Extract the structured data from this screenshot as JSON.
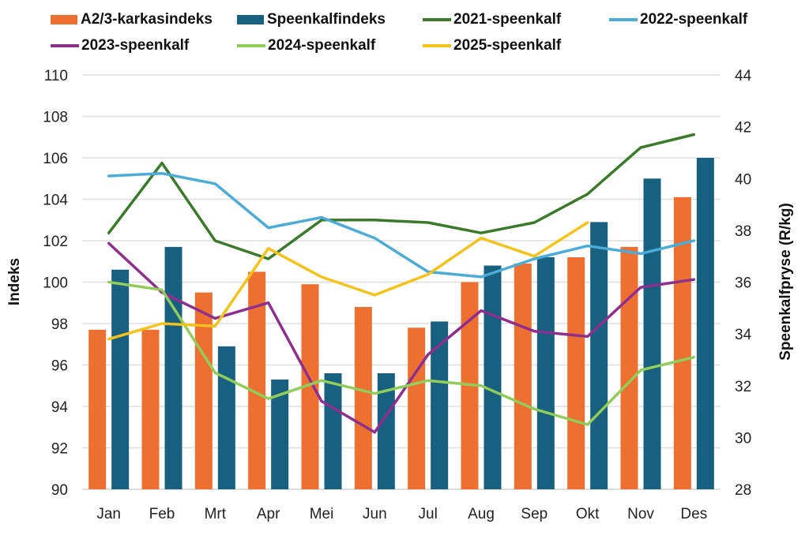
{
  "chart_data": {
    "type": "bar",
    "title": "",
    "xlabel": "",
    "ylabel": "Indeks",
    "y2label": "Speenkalfpryse (R/kg)",
    "ylim": [
      90,
      110
    ],
    "y2lim": [
      28,
      44
    ],
    "yticks": [
      "90",
      "92",
      "94",
      "96",
      "98",
      "100",
      "102",
      "104",
      "106",
      "108",
      "110"
    ],
    "y2ticks": [
      "28",
      "30",
      "32",
      "34",
      "36",
      "38",
      "40",
      "42",
      "44"
    ],
    "grid": true,
    "legend_position": "top",
    "categories": [
      "Jan",
      "Feb",
      "Mrt",
      "Apr",
      "Mei",
      "Jun",
      "Jul",
      "Aug",
      "Sep",
      "Okt",
      "Nov",
      "Des"
    ],
    "bar_series": [
      {
        "name": "A2/3-karkasindeks",
        "color": "#ED7031",
        "axis": "left",
        "values": [
          97.7,
          97.7,
          99.5,
          100.5,
          99.9,
          98.8,
          97.8,
          100.0,
          100.9,
          101.2,
          101.7,
          104.1
        ]
      },
      {
        "name": "Speenkalfindeks",
        "color": "#17607F",
        "axis": "left",
        "values": [
          100.6,
          101.7,
          96.9,
          95.3,
          95.6,
          95.6,
          98.1,
          100.8,
          101.2,
          102.9,
          105.0,
          106.0
        ]
      }
    ],
    "line_series": [
      {
        "name": "2021-speenkalf",
        "color": "#3A7A2A",
        "axis": "right",
        "values": [
          37.9,
          40.6,
          37.6,
          36.9,
          38.4,
          38.4,
          38.3,
          37.9,
          38.3,
          39.4,
          41.2,
          41.7
        ]
      },
      {
        "name": "2022-speenkalf",
        "color": "#4BACD8",
        "axis": "right",
        "values": [
          40.1,
          40.2,
          39.8,
          38.1,
          38.5,
          37.7,
          36.4,
          36.2,
          36.9,
          37.4,
          37.1,
          37.6
        ]
      },
      {
        "name": "2023-speenkalf",
        "color": "#8E2F8E",
        "axis": "right",
        "values": [
          37.5,
          35.6,
          34.6,
          35.2,
          31.4,
          30.2,
          33.2,
          34.9,
          34.1,
          33.9,
          35.8,
          36.1
        ]
      },
      {
        "name": "2024-speenkalf",
        "color": "#92CC5A",
        "axis": "right",
        "values": [
          36.0,
          35.7,
          32.5,
          31.5,
          32.2,
          31.7,
          32.2,
          32.0,
          31.1,
          30.5,
          32.6,
          33.1
        ]
      },
      {
        "name": "2025-speenkalf",
        "color": "#F5C21B",
        "axis": "right",
        "values": [
          33.8,
          34.4,
          34.3,
          37.3,
          36.2,
          35.5,
          36.3,
          37.7,
          37.0,
          38.3,
          null,
          null
        ]
      }
    ]
  }
}
